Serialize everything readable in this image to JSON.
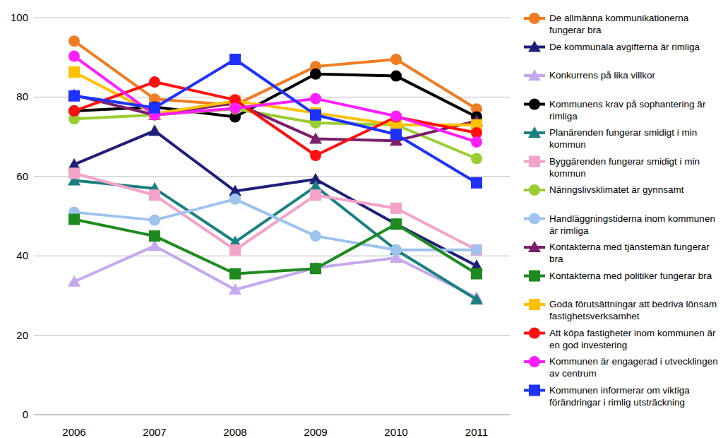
{
  "chart_data": {
    "type": "line",
    "categories": [
      "2006",
      "2007",
      "2008",
      "2009",
      "2010",
      "2011"
    ],
    "ylim": [
      0,
      100
    ],
    "yticks": [
      0,
      20,
      40,
      60,
      80,
      100
    ],
    "grid": true,
    "legend": "right",
    "series": [
      {
        "name": "De allmänna kommunikationerna fungerar bra",
        "color": "#F07D23",
        "marker": "circle",
        "values": [
          94.1,
          79.5,
          78,
          87.7,
          89.5,
          77
        ]
      },
      {
        "name": "De kommunala avgifterna är rimliga",
        "color": "#1F1F7A",
        "marker": "triangle",
        "values": [
          63,
          71.5,
          56.3,
          59.3,
          48,
          37.5
        ]
      },
      {
        "name": "Konkurrens på lika villkor",
        "color": "#C5A8EE",
        "marker": "triangle",
        "values": [
          33.5,
          42.5,
          31.5,
          37,
          39.5,
          29.5
        ]
      },
      {
        "name": "Kommunens krav på sophantering är rimliga",
        "color": "#000000",
        "marker": "circle",
        "values": [
          76.5,
          77.5,
          75,
          85.8,
          85.3,
          75
        ]
      },
      {
        "name": "Planärenden fungerar smidigt i min kommun",
        "color": "#1A8080",
        "marker": "triangle",
        "values": [
          59,
          57,
          43.5,
          57.5,
          41.5,
          29
        ]
      },
      {
        "name": "Byggärenden fungerar smidigt i min kommun",
        "color": "#F4A3C8",
        "marker": "square",
        "values": [
          60.8,
          55.3,
          41.5,
          55.3,
          52,
          41.5
        ]
      },
      {
        "name": "Näringslivsklimatet är gynnsamt",
        "color": "#9ACD32",
        "marker": "circle",
        "values": [
          74.5,
          75.5,
          77,
          73.5,
          73,
          64.5
        ]
      },
      {
        "name": "Handläggningstiderna inom kommunen är rimliga",
        "color": "#9DC3EE",
        "marker": "circle",
        "values": [
          51,
          49,
          54.3,
          45,
          41.5,
          41.5
        ]
      },
      {
        "name": "Kontakterna med tjänstemän fungerar bra",
        "color": "#7B1F6B",
        "marker": "triangle",
        "values": [
          80.5,
          75.5,
          78.5,
          69.5,
          69,
          74
        ]
      },
      {
        "name": "Kontakterna med politiker fungerar bra",
        "color": "#1F8A1F",
        "marker": "square",
        "values": [
          49.2,
          45,
          35.5,
          36.8,
          48,
          35.5
        ]
      },
      {
        "name": "Goda förutsättningar att bedriva lönsam fastighetsverksamhet",
        "color": "#FFC000",
        "marker": "square",
        "values": [
          86.3,
          75.8,
          79,
          76,
          73,
          73
        ]
      },
      {
        "name": "Att köpa fastigheter inom kommunen är en god investering",
        "color": "#FF1010",
        "marker": "circle",
        "values": [
          76.5,
          83.8,
          79.3,
          65.3,
          75,
          71
        ]
      },
      {
        "name": "Kommunen är engagerad i utvecklingen av centrum",
        "color": "#FF1EFF",
        "marker": "circle",
        "values": [
          90.3,
          75.5,
          77.2,
          79.6,
          75.2,
          68.7
        ]
      },
      {
        "name": "Kommunen informerar om viktiga förändringar i rimlig utsträckning",
        "color": "#1E32FF",
        "marker": "square",
        "values": [
          80.3,
          77.3,
          89.5,
          75.5,
          70.6,
          58.4
        ]
      }
    ]
  }
}
